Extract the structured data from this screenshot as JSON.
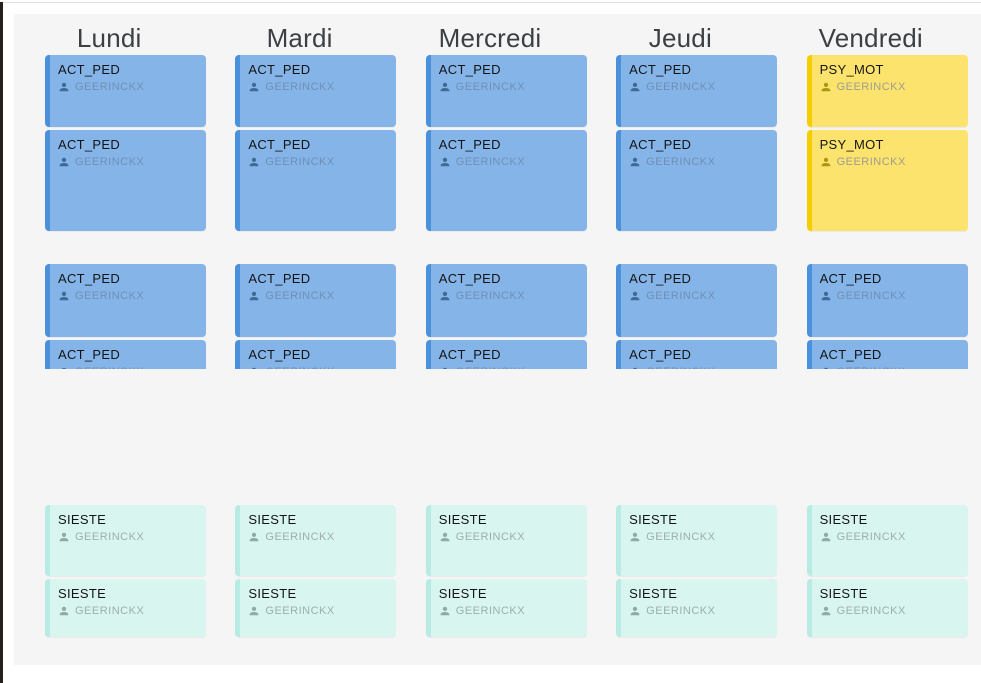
{
  "window": {
    "background": "#ffffff",
    "panel_background": "#f5f5f6",
    "left_frame_color": "#25201d",
    "top_hairline_color": "#e2e2e2",
    "day_header_color": "#3d4043"
  },
  "card_types": {
    "ACT_PED": {
      "bg": "#85b4e8",
      "strip": "#4b90da",
      "icon": "#3f6a95",
      "name_color": "#6f90b5",
      "title_color": "#141414"
    },
    "PSY_MOT": {
      "bg": "#fce36d",
      "strip": "#f6ce00",
      "icon": "#a89812",
      "name_color": "#9d9d8f",
      "title_color": "#141414"
    },
    "SIESTE": {
      "bg": "#d8f5f0",
      "strip": "#b8ebe3",
      "icon": "#92a9a4",
      "name_color": "#9eaeaa",
      "title_color": "#141414"
    }
  },
  "days": [
    {
      "label": "Lundi",
      "rows": [
        {
          "name": "morning",
          "cards": [
            {
              "type": "ACT_PED",
              "title": "ACT_PED",
              "person": "GEERINCKX"
            },
            {
              "type": "ACT_PED",
              "title": "ACT_PED",
              "person": "GEERINCKX"
            }
          ]
        },
        {
          "name": "midday",
          "cards": [
            {
              "type": "ACT_PED",
              "title": "ACT_PED",
              "person": "GEERINCKX"
            },
            {
              "type": "ACT_PED",
              "title": "ACT_PED",
              "person": "GEERINCKX"
            }
          ]
        },
        {
          "name": "nap",
          "cards": [
            {
              "type": "SIESTE",
              "title": "SIESTE",
              "person": "GEERINCKX"
            },
            {
              "type": "SIESTE",
              "title": "SIESTE",
              "person": "GEERINCKX"
            }
          ]
        }
      ]
    },
    {
      "label": "Mardi",
      "rows": [
        {
          "name": "morning",
          "cards": [
            {
              "type": "ACT_PED",
              "title": "ACT_PED",
              "person": "GEERINCKX"
            },
            {
              "type": "ACT_PED",
              "title": "ACT_PED",
              "person": "GEERINCKX"
            }
          ]
        },
        {
          "name": "midday",
          "cards": [
            {
              "type": "ACT_PED",
              "title": "ACT_PED",
              "person": "GEERINCKX"
            },
            {
              "type": "ACT_PED",
              "title": "ACT_PED",
              "person": "GEERINCKX"
            }
          ]
        },
        {
          "name": "nap",
          "cards": [
            {
              "type": "SIESTE",
              "title": "SIESTE",
              "person": "GEERINCKX"
            },
            {
              "type": "SIESTE",
              "title": "SIESTE",
              "person": "GEERINCKX"
            }
          ]
        }
      ]
    },
    {
      "label": "Mercredi",
      "rows": [
        {
          "name": "morning",
          "cards": [
            {
              "type": "ACT_PED",
              "title": "ACT_PED",
              "person": "GEERINCKX"
            },
            {
              "type": "ACT_PED",
              "title": "ACT_PED",
              "person": "GEERINCKX"
            }
          ]
        },
        {
          "name": "midday",
          "cards": [
            {
              "type": "ACT_PED",
              "title": "ACT_PED",
              "person": "GEERINCKX"
            },
            {
              "type": "ACT_PED",
              "title": "ACT_PED",
              "person": "GEERINCKX"
            }
          ]
        },
        {
          "name": "nap",
          "cards": [
            {
              "type": "SIESTE",
              "title": "SIESTE",
              "person": "GEERINCKX"
            },
            {
              "type": "SIESTE",
              "title": "SIESTE",
              "person": "GEERINCKX"
            }
          ]
        }
      ]
    },
    {
      "label": "Jeudi",
      "rows": [
        {
          "name": "morning",
          "cards": [
            {
              "type": "ACT_PED",
              "title": "ACT_PED",
              "person": "GEERINCKX"
            },
            {
              "type": "ACT_PED",
              "title": "ACT_PED",
              "person": "GEERINCKX"
            }
          ]
        },
        {
          "name": "midday",
          "cards": [
            {
              "type": "ACT_PED",
              "title": "ACT_PED",
              "person": "GEERINCKX"
            },
            {
              "type": "ACT_PED",
              "title": "ACT_PED",
              "person": "GEERINCKX"
            }
          ]
        },
        {
          "name": "nap",
          "cards": [
            {
              "type": "SIESTE",
              "title": "SIESTE",
              "person": "GEERINCKX"
            },
            {
              "type": "SIESTE",
              "title": "SIESTE",
              "person": "GEERINCKX"
            }
          ]
        }
      ]
    },
    {
      "label": "Vendredi",
      "rows": [
        {
          "name": "morning",
          "cards": [
            {
              "type": "PSY_MOT",
              "title": "PSY_MOT",
              "person": "GEERINCKX"
            },
            {
              "type": "PSY_MOT",
              "title": "PSY_MOT",
              "person": "GEERINCKX"
            }
          ]
        },
        {
          "name": "midday",
          "cards": [
            {
              "type": "ACT_PED",
              "title": "ACT_PED",
              "person": "GEERINCKX"
            },
            {
              "type": "ACT_PED",
              "title": "ACT_PED",
              "person": "GEERINCKX"
            }
          ]
        },
        {
          "name": "nap",
          "cards": [
            {
              "type": "SIESTE",
              "title": "SIESTE",
              "person": "GEERINCKX"
            },
            {
              "type": "SIESTE",
              "title": "SIESTE",
              "person": "GEERINCKX"
            }
          ]
        }
      ]
    }
  ]
}
